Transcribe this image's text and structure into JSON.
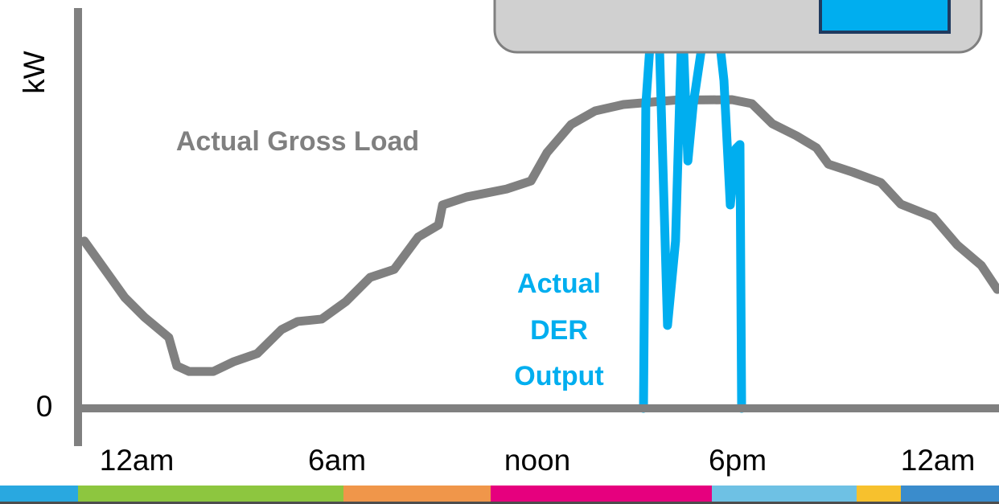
{
  "chart_data": {
    "type": "line",
    "y_label": "kW",
    "xlim": [
      -1.76,
      25.83
    ],
    "xticks": [
      {
        "value": 0,
        "label": "12am"
      },
      {
        "value": 6,
        "label": "6am"
      },
      {
        "value": 12,
        "label": "noon"
      },
      {
        "value": 18,
        "label": "6pm"
      },
      {
        "value": 24,
        "label": "12am"
      }
    ],
    "ylim": [
      0,
      100
    ],
    "yticks": [
      0
    ],
    "annotations": [
      "Actual Gross Load",
      [
        "Actual",
        "DER",
        "Output"
      ]
    ],
    "series": [
      {
        "name": "Actual Gross Load",
        "color": "#808080",
        "x": [
          -1.57,
          -0.96,
          -0.36,
          0.24,
          0.96,
          1.2,
          1.57,
          2.29,
          2.89,
          3.61,
          4.34,
          4.82,
          5.54,
          6.27,
          6.99,
          7.71,
          8.43,
          9.04,
          9.16,
          9.88,
          11.08,
          11.81,
          12.29,
          13.01,
          13.73,
          14.58,
          16.14,
          17.83,
          18.43,
          19.04,
          19.76,
          20.36,
          20.72,
          21.45,
          22.29,
          22.89,
          23.86,
          24.58,
          25.3,
          25.78
        ],
        "values": [
          41.8,
          34.7,
          27.7,
          22.7,
          17.7,
          10.6,
          9.2,
          9.2,
          11.6,
          13.7,
          19.7,
          21.7,
          22.3,
          26.7,
          32.7,
          34.7,
          42.8,
          45.8,
          50.8,
          52.8,
          54.8,
          56.8,
          63.9,
          70.9,
          74.3,
          75.9,
          77,
          77.1,
          76.1,
          71.1,
          68.1,
          65.1,
          61,
          59,
          56.4,
          51,
          47.8,
          40.8,
          35.7,
          29.7
        ]
      },
      {
        "name": "Actual DER Output",
        "color": "#00aeef",
        "x": [
          15.18,
          15.25,
          15.47,
          15.66,
          15.9,
          16.14,
          16.34,
          16.51,
          16.67,
          16.92,
          17.11,
          17.35,
          17.59,
          17.78,
          17.95,
          18.07,
          18.12
        ],
        "values": [
          0,
          75.9,
          102,
          90,
          20.7,
          41.8,
          99,
          61.8,
          75.9,
          90,
          102,
          100,
          81.9,
          50.8,
          64.9,
          65.9,
          0
        ]
      }
    ]
  }
}
